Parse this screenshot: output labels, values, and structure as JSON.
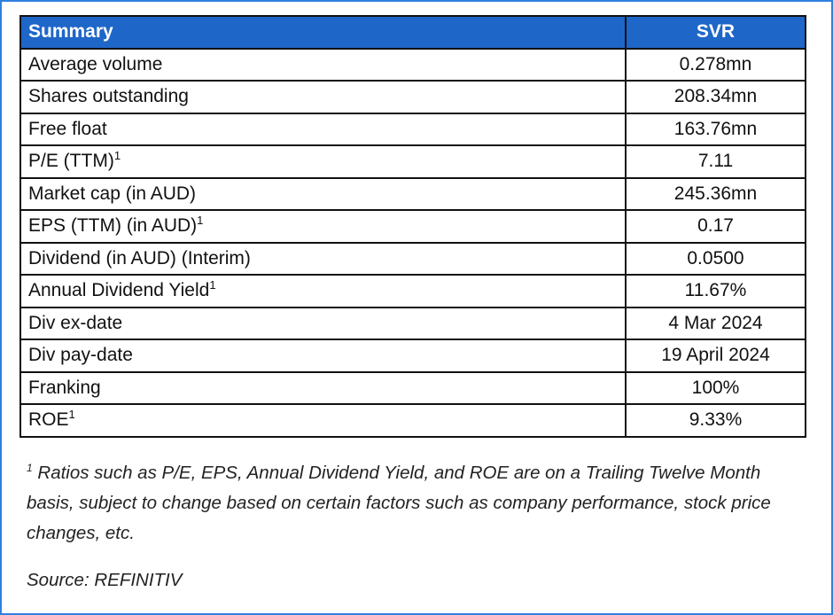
{
  "table": {
    "header": {
      "label": "Summary",
      "value": "SVR"
    },
    "rows": [
      {
        "label": "Average volume",
        "sup": "",
        "value": "0.278mn"
      },
      {
        "label": "Shares outstanding",
        "sup": "",
        "value": "208.34mn"
      },
      {
        "label": "Free float",
        "sup": "",
        "value": "163.76mn"
      },
      {
        "label": "P/E (TTM)",
        "sup": "1",
        "value": "7.11"
      },
      {
        "label": "Market cap (in AUD)",
        "sup": "",
        "value": "245.36mn"
      },
      {
        "label": "EPS (TTM) (in AUD)",
        "sup": "1",
        "value": "0.17"
      },
      {
        "label": "Dividend (in AUD) (Interim)",
        "sup": "",
        "value": "0.0500"
      },
      {
        "label": "Annual Dividend Yield",
        "sup": "1",
        "value": "11.67%"
      },
      {
        "label": "Div ex-date",
        "sup": "",
        "value": "4 Mar 2024"
      },
      {
        "label": "Div pay-date",
        "sup": "",
        "value": "19 April 2024"
      },
      {
        "label": "Franking",
        "sup": "",
        "value": "100%"
      },
      {
        "label": "ROE",
        "sup": "1",
        "value": "9.33%"
      }
    ]
  },
  "footnote": {
    "marker": "1",
    "text": " Ratios such as P/E, EPS, Annual Dividend Yield, and ROE are on a Trailing Twelve Month basis, subject to change based on certain factors such as company performance, stock price changes, etc."
  },
  "source": "Source: REFINITIV",
  "colors": {
    "header_bg": "#1f66c9",
    "frame_border": "#2f7fe0"
  }
}
